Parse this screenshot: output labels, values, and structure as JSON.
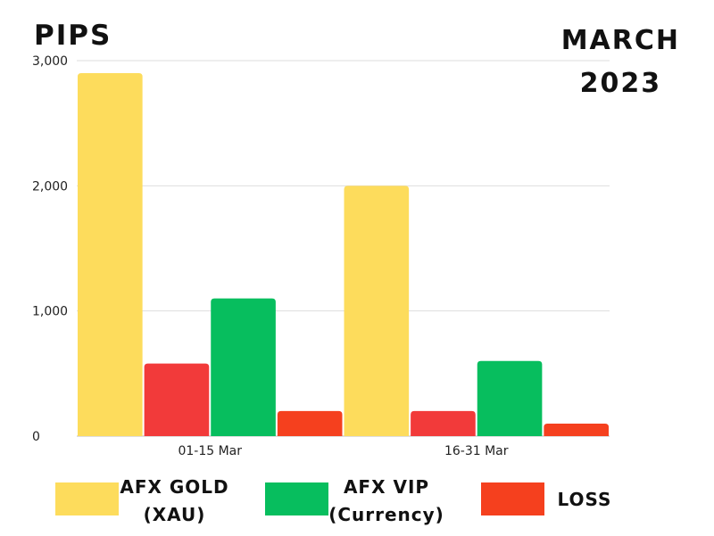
{
  "chart_data": {
    "type": "bar",
    "ylabel": "PIPS",
    "period": [
      "MARCH",
      "2023"
    ],
    "categories": [
      "01-15 Mar",
      "16-31 Mar"
    ],
    "series": [
      {
        "name": "AFX GOLD (XAU)",
        "color": "#FDDC5C",
        "values": [
          2900,
          2000
        ]
      },
      {
        "name": "LOSS",
        "color": "#F23A3A",
        "values": [
          580,
          200
        ]
      },
      {
        "name": "AFX VIP (Currency)",
        "color": "#07BE5E",
        "values": [
          1100,
          600
        ]
      },
      {
        "name": "LOSS",
        "color": "#F5401E",
        "values": [
          200,
          100
        ]
      }
    ],
    "ylim": [
      0,
      3000
    ],
    "yticks": [
      0,
      1000,
      2000,
      3000
    ],
    "ytick_labels": [
      "0",
      "1,000",
      "2,000",
      "3,000"
    ],
    "grid": true
  },
  "legend": [
    {
      "line1": "AFX GOLD",
      "line2": "(XAU)",
      "color": "#FDDC5C"
    },
    {
      "line1": "AFX VIP",
      "line2": "(Currency)",
      "color": "#07BE5E"
    },
    {
      "line1": "LOSS",
      "line2": "",
      "color": "#F5401E"
    }
  ]
}
